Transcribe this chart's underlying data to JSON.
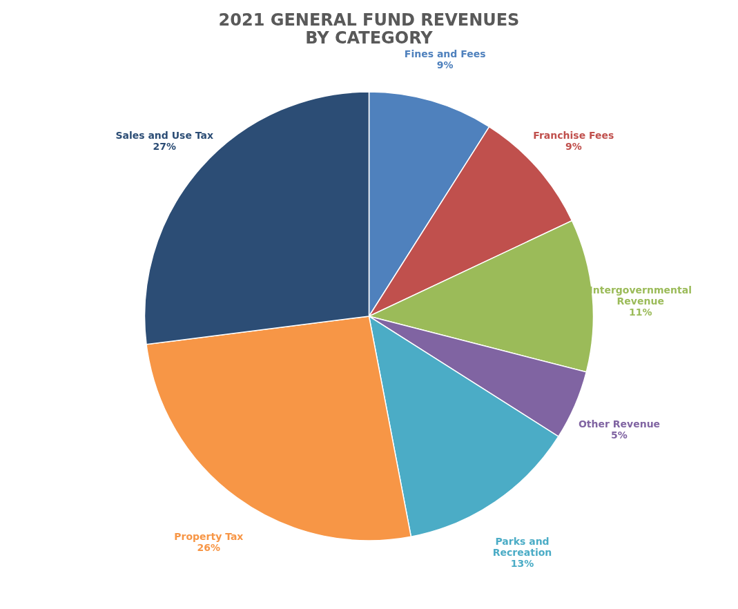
{
  "chart_data": {
    "type": "pie",
    "title": "2021 GENERAL FUND REVENUES\nBY CATEGORY",
    "categories": [
      "Fines and Fees",
      "Franchise Fees",
      "Intergovernmental Revenue",
      "Other Revenue",
      "Parks and Recreation",
      "Property Tax",
      "Sales and Use Tax"
    ],
    "values": [
      9,
      9,
      11,
      5,
      13,
      26,
      27
    ],
    "value_labels": [
      "9%",
      "9%",
      "11%",
      "5%",
      "13%",
      "26%",
      "27%"
    ],
    "colors": [
      "#4f81bd",
      "#c0504d",
      "#9bbb59",
      "#8064a2",
      "#4bacc6",
      "#f79646",
      "#2c4d75"
    ],
    "legend": false
  }
}
